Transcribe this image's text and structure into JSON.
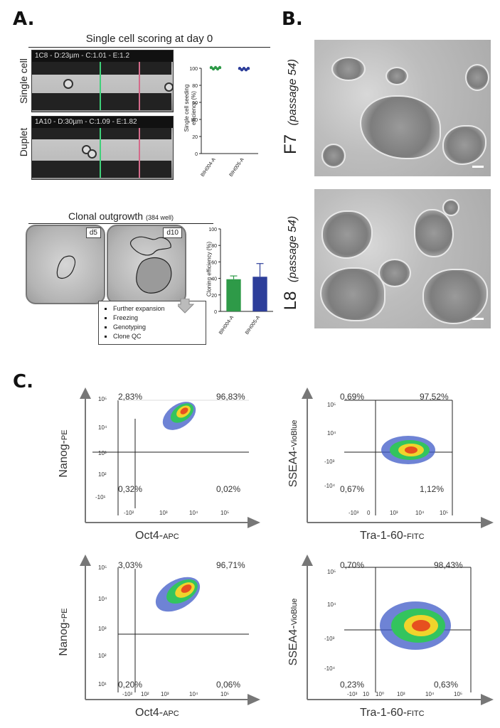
{
  "panel_a": {
    "letter": "A.",
    "scoring_title": "Single cell scoring at day 0",
    "single_cell_label": "Single cell",
    "duplet_label": "Duplet",
    "single_cell_bar": "1C8 - D:23µm - C:1.01 - E:1.2",
    "duplet_bar": "1A10 - D:30µm - C:1.09 - E:1.82",
    "seeding_chart": {
      "ylabel_line1": "Single cell seeding",
      "ylabel_line2": "efficiency (%)",
      "ticks": [
        "0",
        "20",
        "40",
        "60",
        "80",
        "100"
      ],
      "categories": [
        "BIH004-A",
        "BIH005-A"
      ]
    },
    "outgrowth_title": "Clonal outgrowth",
    "outgrowth_sub": "(384 well)",
    "d5": "d5",
    "d10": "d10",
    "steps": [
      "Further expansion",
      "Freezing",
      "Genotyping",
      "Clone QC"
    ],
    "cloning_chart": {
      "ylabel": "Cloning efficiency (%)",
      "ticks": [
        "0",
        "20",
        "40",
        "60",
        "80",
        "100"
      ],
      "categories": [
        "BIH004-A",
        "BIH005-A"
      ]
    }
  },
  "panel_b": {
    "letter": "B.",
    "f7": "F7",
    "l8": "L8",
    "passage": "(passage 54)"
  },
  "panel_c": {
    "letter": "C.",
    "plots": [
      {
        "y_main": "Nanog-",
        "y_sub": "PE",
        "x_main": "Oct4-",
        "x_sub": "APC",
        "ul": "2,83%",
        "ur": "96,83%",
        "ll": "0,32%",
        "lr": "0,02%"
      },
      {
        "y_main": "SSEA4-",
        "y_sub": "VioBlue",
        "x_main": "Tra-1-60-",
        "x_sub": "FITC",
        "ul": "0,69%",
        "ur": "97,52%",
        "ll": "0,67%",
        "lr": "1,12%"
      },
      {
        "y_main": "Nanog-",
        "y_sub": "PE",
        "x_main": "Oct4-",
        "x_sub": "APC",
        "ul": "3,03%",
        "ur": "96,71%",
        "ll": "0,20%",
        "lr": "0,06%"
      },
      {
        "y_main": "SSEA4-",
        "y_sub": "VioBlue",
        "x_main": "Tra-1-60-",
        "x_sub": "FITC",
        "ul": "0,70%",
        "ur": "98,43%",
        "ll": "0,23%",
        "lr": "0,63%"
      }
    ],
    "nanog_ticks_y": [
      "10⁵",
      "10⁴",
      "10³",
      "10²",
      "-10¹"
    ],
    "nanog_ticks_y2": [
      "10⁵",
      "10⁴",
      "10³",
      "10²",
      "10¹"
    ],
    "oct_ticks_x": [
      "-10²",
      "10³",
      "10⁴",
      "10⁵"
    ],
    "oct_ticks_x2": [
      "-10²",
      "10²",
      "10³",
      "10⁴",
      "10⁵"
    ],
    "ssea_ticks_y": [
      "10⁵",
      "10⁴",
      "-10³",
      "-10⁴"
    ],
    "ssea_ticks_y2": [
      "10⁵",
      "10⁴",
      "-10³",
      "-10⁴"
    ],
    "tra_ticks_x": [
      "-10³",
      "0",
      "10³",
      "10⁴",
      "10⁵"
    ],
    "tra_ticks_x2": [
      "-10³",
      "10",
      "10⁰",
      "10³",
      "10⁴",
      "10⁵"
    ]
  },
  "chart_data": [
    {
      "type": "scatter",
      "title": "",
      "ylabel": "Single cell seeding efficiency (%)",
      "categories": [
        "BIH004-A",
        "BIH005-A"
      ],
      "values": [
        100,
        99
      ],
      "ylim": [
        0,
        100
      ],
      "colors": [
        "#2e9a48",
        "#2d3e9a"
      ]
    },
    {
      "type": "bar",
      "title": "",
      "ylabel": "Cloning efficiency (%)",
      "categories": [
        "BIH004-A",
        "BIH005-A"
      ],
      "values": [
        39,
        42
      ],
      "errors": [
        4,
        16
      ],
      "ylim": [
        0,
        100
      ],
      "colors": [
        "#2e9a48",
        "#2d3e9a"
      ]
    }
  ]
}
